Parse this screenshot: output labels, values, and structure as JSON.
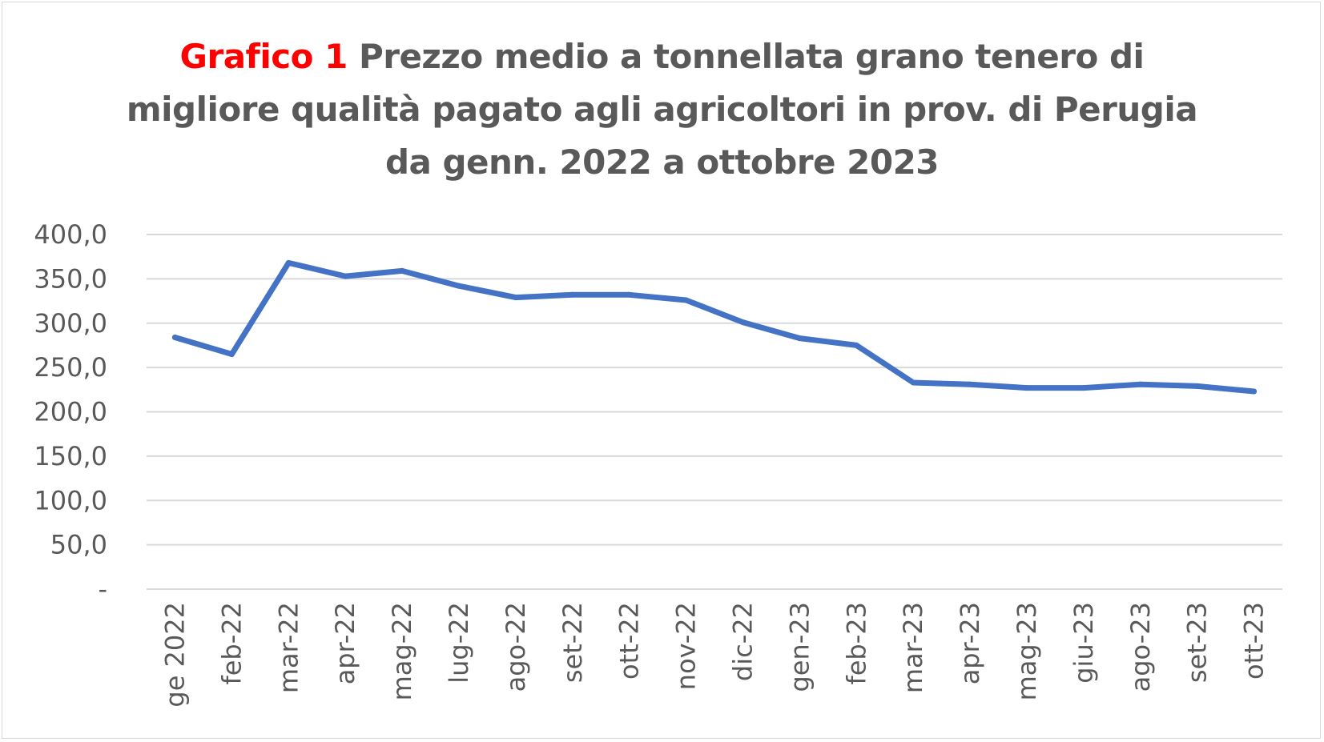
{
  "chart_data": {
    "type": "line",
    "title_accent": "Grafico 1",
    "title_line1": "Prezzo medio a tonnellata grano tenero di",
    "title_line2": "migliore qualità pagato agli agricoltori in prov. di Perugia",
    "title_line3": "da genn. 2022 a ottobre 2023",
    "categories": [
      "ge 2022",
      "feb-22",
      "mar-22",
      "apr-22",
      "mag-22",
      "lug-22",
      "ago-22",
      "set-22",
      "ott-22",
      "nov-22",
      "dic-22",
      "gen-23",
      "feb-23",
      "mar-23",
      "apr-23",
      "mag-23",
      "giu-23",
      "ago-23",
      "set-23",
      "ott-23"
    ],
    "series": [
      {
        "values": [
          284,
          265,
          368,
          353,
          359,
          342,
          329,
          332,
          332,
          326,
          301,
          283,
          275,
          233,
          231,
          227,
          227,
          231,
          229,
          223
        ],
        "color": "#4472c4"
      }
    ],
    "yticks": [
      {
        "value": 0,
        "label": "-"
      },
      {
        "value": 50,
        "label": "50,0"
      },
      {
        "value": 100,
        "label": "100,0"
      },
      {
        "value": 150,
        "label": "150,0"
      },
      {
        "value": 200,
        "label": "200,0"
      },
      {
        "value": 250,
        "label": "250,0"
      },
      {
        "value": 300,
        "label": "300,0"
      },
      {
        "value": 350,
        "label": "350,0"
      },
      {
        "value": 400,
        "label": "400,0"
      }
    ],
    "ylim": [
      0,
      400
    ],
    "grid": true,
    "legend": "none",
    "gridline_color": "#d9d9d9",
    "text_color": "#595959",
    "accent_color": "#ff0000"
  }
}
